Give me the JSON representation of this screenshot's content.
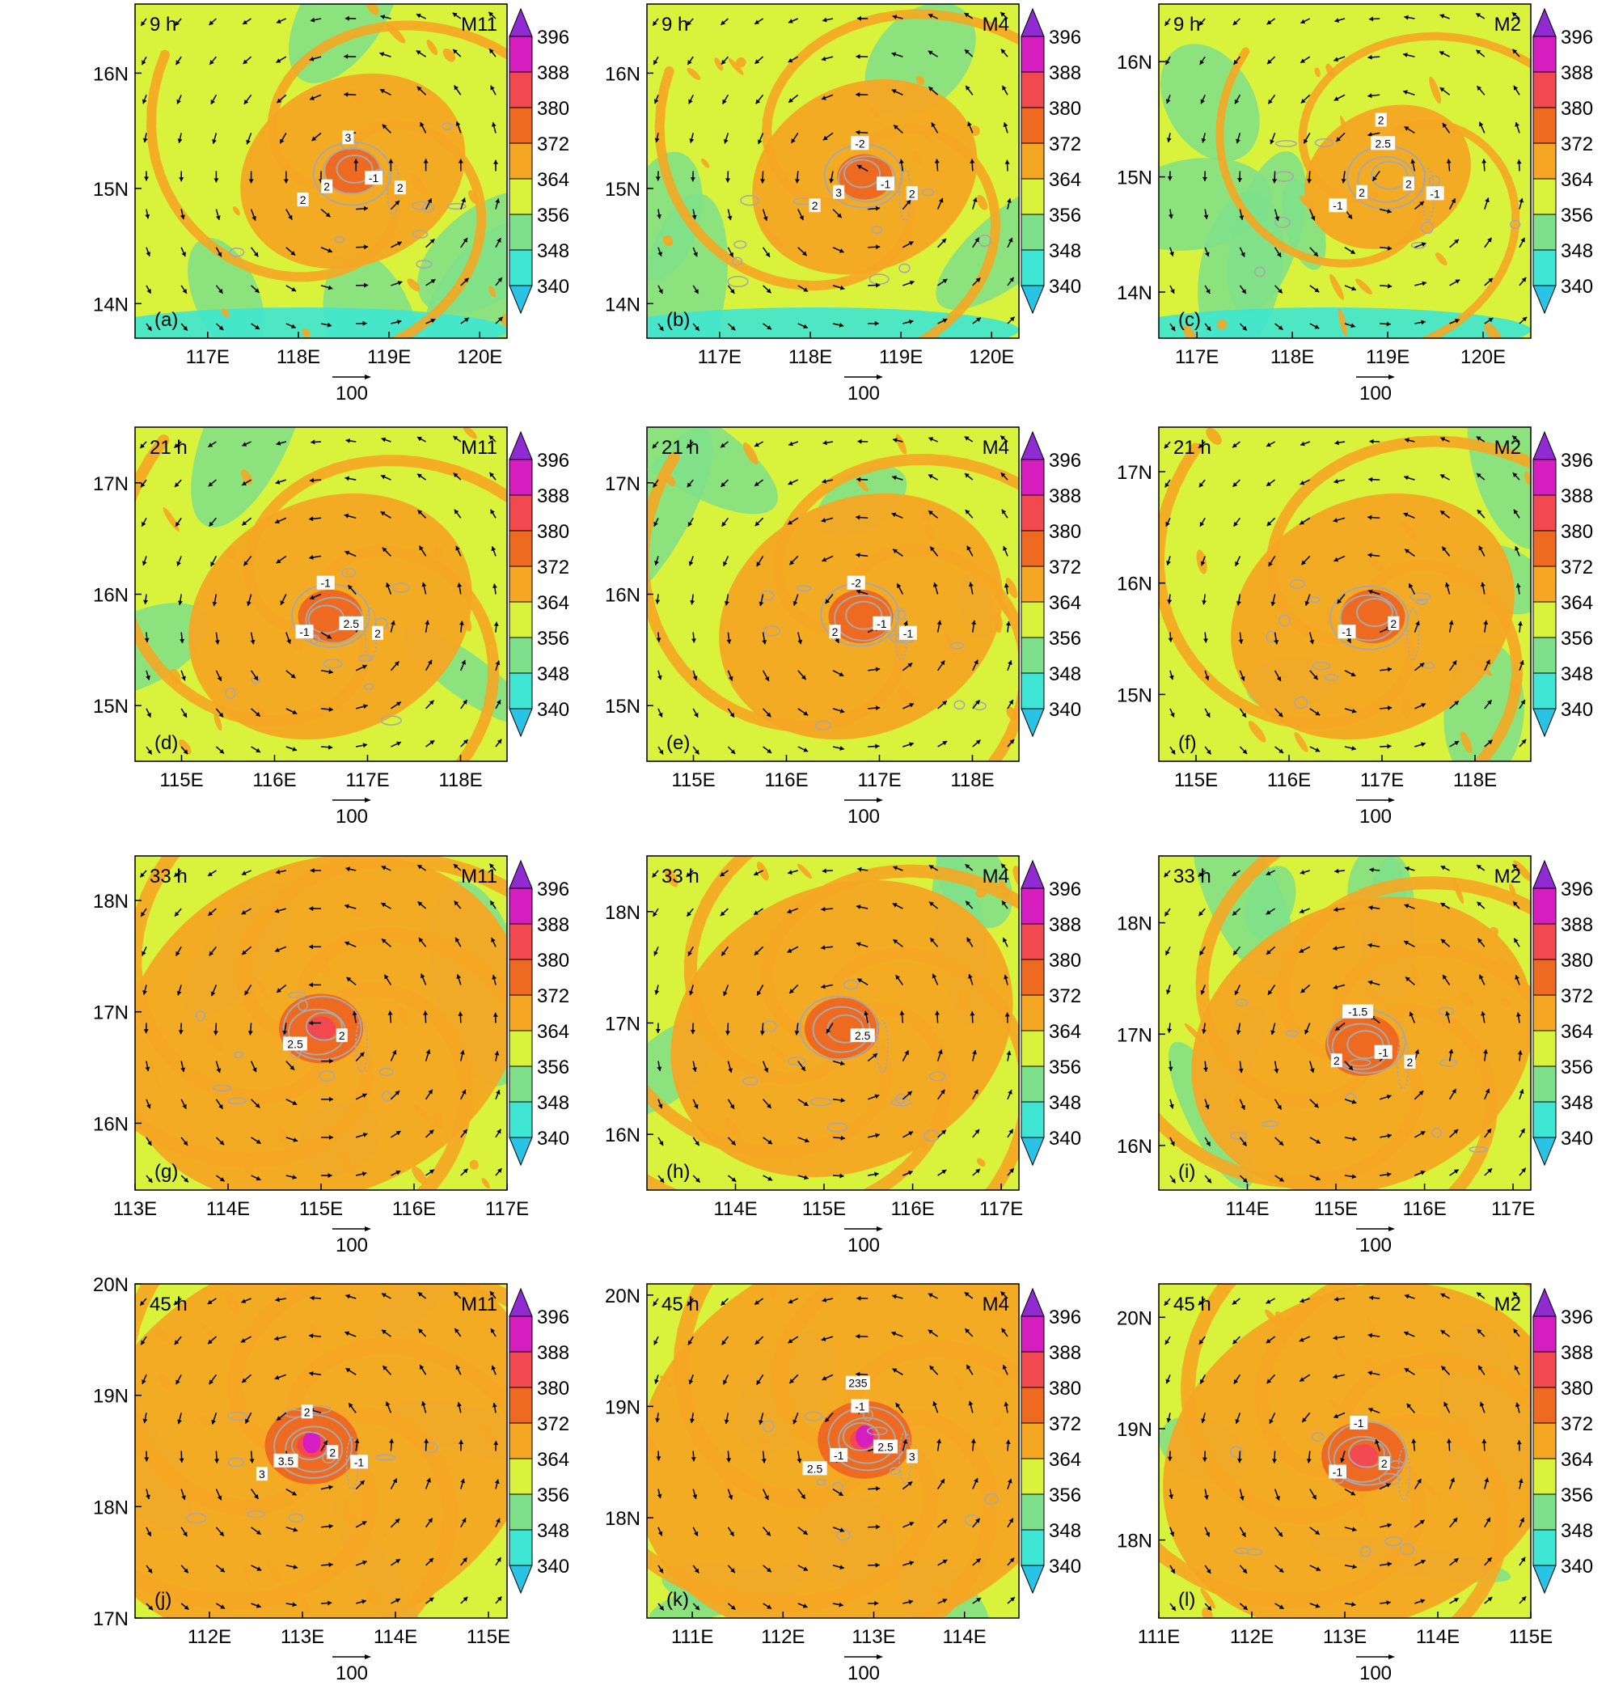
{
  "colors": {
    "scale": [
      "#29c3e6",
      "#3ee6d3",
      "#7ee08a",
      "#d9f23c",
      "#f5a623",
      "#ef6a21",
      "#f24850",
      "#d61dc0",
      "#8f2bd1"
    ],
    "vector": "#000000",
    "contour": "#a8a8a8",
    "coast": "#000000"
  },
  "chart_data": {
    "type": "contour-map",
    "colorbar": {
      "levels": [
        340,
        348,
        356,
        364,
        372,
        380,
        388,
        396
      ]
    },
    "reference_vector": "100",
    "panels": [
      {
        "panel": "(a)",
        "time": "9 h",
        "experiment": "M11",
        "xlabels": [
          "117E",
          "118E",
          "119E",
          "120E"
        ],
        "ylabels": [
          "14N",
          "15N",
          "16N"
        ],
        "xlim": [
          116.2,
          120.3
        ],
        "ylim": [
          13.7,
          16.6
        ],
        "center": [
          118.6,
          15.15
        ],
        "intensity": 2,
        "contour_labels": [
          "-1",
          "2",
          "3",
          "2",
          "2"
        ]
      },
      {
        "panel": "(b)",
        "time": "9 h",
        "experiment": "M4",
        "xlabels": [
          "117E",
          "118E",
          "119E",
          "120E"
        ],
        "ylabels": [
          "14N",
          "15N",
          "16N"
        ],
        "xlim": [
          116.2,
          120.3
        ],
        "ylim": [
          13.7,
          16.6
        ],
        "center": [
          118.6,
          15.1
        ],
        "intensity": 2,
        "contour_labels": [
          "-1",
          "3",
          "-2",
          "2",
          "2"
        ]
      },
      {
        "panel": "(c)",
        "time": "9 h",
        "experiment": "M2",
        "xlabels": [
          "117E",
          "118E",
          "119E",
          "120E"
        ],
        "ylabels": [
          "14N",
          "15N",
          "16N"
        ],
        "xlim": [
          116.6,
          120.5
        ],
        "ylim": [
          13.6,
          16.5
        ],
        "center": [
          119.0,
          15.0
        ],
        "intensity": 1,
        "contour_labels": [
          "2",
          "2",
          "2.5",
          "-1",
          "-1",
          "2"
        ]
      },
      {
        "panel": "(d)",
        "time": "21 h",
        "experiment": "M11",
        "xlabels": [
          "115E",
          "116E",
          "117E",
          "118E"
        ],
        "ylabels": [
          "15N",
          "16N",
          "17N"
        ],
        "xlim": [
          114.5,
          118.5
        ],
        "ylim": [
          14.5,
          17.5
        ],
        "center": [
          116.6,
          15.8
        ],
        "intensity": 3,
        "contour_labels": [
          "2.5",
          "-1",
          "-1",
          "2"
        ]
      },
      {
        "panel": "(e)",
        "time": "21 h",
        "experiment": "M4",
        "xlabels": [
          "115E",
          "116E",
          "117E",
          "118E"
        ],
        "ylabels": [
          "15N",
          "16N",
          "17N"
        ],
        "xlim": [
          114.5,
          118.5
        ],
        "ylim": [
          14.5,
          17.5
        ],
        "center": [
          116.8,
          15.8
        ],
        "intensity": 3,
        "contour_labels": [
          "-1",
          "2",
          "-2",
          "-1"
        ]
      },
      {
        "panel": "(f)",
        "time": "21 h",
        "experiment": "M2",
        "xlabels": [
          "115E",
          "116E",
          "117E",
          "118E"
        ],
        "ylabels": [
          "15N",
          "16N",
          "17N"
        ],
        "xlim": [
          114.6,
          118.6
        ],
        "ylim": [
          14.4,
          17.4
        ],
        "center": [
          116.9,
          15.7
        ],
        "intensity": 3,
        "contour_labels": [
          "2",
          "-1"
        ]
      },
      {
        "panel": "(g)",
        "time": "33 h",
        "experiment": "M11",
        "xlabels": [
          "113E",
          "114E",
          "115E",
          "116E",
          "117E"
        ],
        "ylabels": [
          "16N",
          "17N",
          "18N"
        ],
        "xlim": [
          113.0,
          117.0
        ],
        "ylim": [
          15.4,
          18.4
        ],
        "center": [
          115.0,
          16.85
        ],
        "intensity": 5,
        "contour_labels": [
          "2",
          "2.5"
        ]
      },
      {
        "panel": "(h)",
        "time": "33 h",
        "experiment": "M4",
        "xlabels": [
          "114E",
          "115E",
          "116E",
          "117E"
        ],
        "ylabels": [
          "16N",
          "17N",
          "18N"
        ],
        "xlim": [
          113.0,
          117.2
        ],
        "ylim": [
          15.5,
          18.5
        ],
        "center": [
          115.2,
          16.95
        ],
        "intensity": 4,
        "contour_labels": [
          "2.5"
        ]
      },
      {
        "panel": "(i)",
        "time": "33 h",
        "experiment": "M2",
        "xlabels": [
          "114E",
          "115E",
          "116E",
          "117E"
        ],
        "ylabels": [
          "16N",
          "17N",
          "18N"
        ],
        "xlim": [
          113.0,
          117.2
        ],
        "ylim": [
          15.6,
          18.6
        ],
        "center": [
          115.3,
          16.9
        ],
        "intensity": 4,
        "contour_labels": [
          "-1",
          "2",
          "-1.5",
          "2"
        ]
      },
      {
        "panel": "(j)",
        "time": "45 h",
        "experiment": "M11",
        "xlabels": [
          "112E",
          "113E",
          "114E",
          "115E"
        ],
        "ylabels": [
          "17N",
          "18N",
          "19N",
          "20N"
        ],
        "xlim": [
          111.2,
          115.2
        ],
        "ylim": [
          17.0,
          20.0
        ],
        "center": [
          113.1,
          18.55
        ],
        "intensity": 6,
        "contour_labels": [
          "2",
          "3.5",
          "2",
          "-1",
          "3"
        ]
      },
      {
        "panel": "(k)",
        "time": "45 h",
        "experiment": "M4",
        "xlabels": [
          "111E",
          "112E",
          "113E",
          "114E"
        ],
        "ylabels": [
          "18N",
          "19N",
          "20N"
        ],
        "xlim": [
          110.5,
          114.6
        ],
        "ylim": [
          17.1,
          20.1
        ],
        "center": [
          112.9,
          18.7
        ],
        "intensity": 6,
        "contour_labels": [
          "2.5",
          "-1",
          "-1",
          "3",
          "2.5",
          "235"
        ]
      },
      {
        "panel": "(l)",
        "time": "45 h",
        "experiment": "M2",
        "xlabels": [
          "111E",
          "112E",
          "113E",
          "114E",
          "115E"
        ],
        "ylabels": [
          "18N",
          "19N",
          "20N"
        ],
        "xlim": [
          111.0,
          115.0
        ],
        "ylim": [
          17.3,
          20.3
        ],
        "center": [
          113.2,
          18.75
        ],
        "intensity": 5,
        "contour_labels": [
          "2",
          "-1",
          "-1"
        ]
      }
    ]
  }
}
